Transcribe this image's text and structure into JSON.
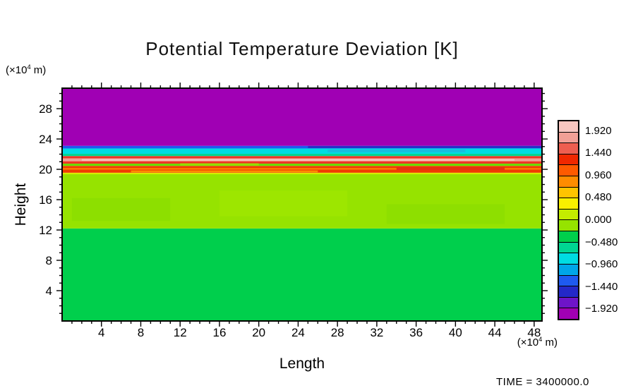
{
  "chart_data": {
    "type": "heatmap",
    "title": "Potential Temperature Deviation [K]",
    "xlabel": "Length",
    "ylabel": "Height",
    "axis_unit": {
      "base": "(×10",
      "exp": "4",
      "rest": " m)"
    },
    "xlim": [
      0,
      48.8
    ],
    "ylim": [
      0,
      30.7
    ],
    "x_major_ticks": [
      4,
      8,
      12,
      16,
      20,
      24,
      28,
      32,
      36,
      40,
      44,
      48
    ],
    "y_major_ticks": [
      4,
      8,
      12,
      16,
      20,
      24,
      28
    ],
    "minor_tick_step": 1,
    "grid": false,
    "time_label": "TIME = 3400000.0",
    "colorbar": {
      "min": -2.16,
      "max": 2.16,
      "step": 0.24,
      "tick_values": [
        1.92,
        1.44,
        0.96,
        0.48,
        0,
        -0.48,
        -0.96,
        -1.44,
        -1.92
      ],
      "tick_labels": [
        "1.920",
        "1.440",
        "0.960",
        "0.480",
        "0.000",
        "−0.480",
        "−0.960",
        "−1.440",
        "−1.920"
      ],
      "colors_top_to_bottom": [
        "#F8C6C0",
        "#F2A096",
        "#EE5E50",
        "#F02800",
        "#FF5A00",
        "#FF8C00",
        "#FFC400",
        "#F8F000",
        "#C4EC00",
        "#96E300",
        "#00CF4C",
        "#00D693",
        "#00DCE2",
        "#00A6E8",
        "#1E5AF0",
        "#2428C8",
        "#6E14C8",
        "#A000B4"
      ]
    },
    "bands": [
      {
        "y0": 0,
        "y1": 12.2,
        "color": "#00CF4C",
        "approx_value": "0.00 to 0.24"
      },
      {
        "y0": 12.2,
        "y1": 19.35,
        "color": "#96E300",
        "approx_value": "0.24 to 0.48"
      },
      {
        "y0": 19.35,
        "y1": 19.55,
        "color": "#D8EE00",
        "approx_value": "0.72 to 0.96"
      },
      {
        "y0": 19.55,
        "y1": 20.45,
        "color": "#F03C00",
        "approx_value": "1.44 to 1.68"
      },
      {
        "y0": 20.45,
        "y1": 20.75,
        "color": "#6ADC00",
        "approx_value": "0.24 to 0.48"
      },
      {
        "y0": 20.75,
        "y1": 21.75,
        "color": "#EE3424",
        "approx_value": "1.44 to 1.92"
      },
      {
        "y0": 21.75,
        "y1": 22.05,
        "color": "#00D693",
        "approx_value": "-0.24 to -0.48"
      },
      {
        "y0": 22.05,
        "y1": 22.75,
        "color": "#00DCE2",
        "approx_value": "-0.48 to -0.96"
      },
      {
        "y0": 22.75,
        "y1": 23.1,
        "color": "#1E5AF0",
        "approx_value": "-1.44 to -1.68"
      },
      {
        "y0": 23.1,
        "y1": 30.7,
        "color": "#A000B4",
        "approx_value": "below -2.16"
      }
    ],
    "patches": [
      {
        "x0": 0,
        "x1": 48.8,
        "y0": 21.05,
        "y1": 21.45,
        "color": "#F2A096",
        "approx_value": "1.68 to 1.92"
      },
      {
        "x0": 2,
        "x1": 46,
        "y0": 21.15,
        "y1": 21.35,
        "color": "#F8C8C2",
        "approx_value": "above 1.92"
      },
      {
        "x0": 0,
        "x1": 48.8,
        "y0": 19.95,
        "y1": 20.18,
        "color": "#FF7A00",
        "approx_value": "1.20 to 1.44"
      },
      {
        "x0": 7,
        "x1": 26,
        "y0": 19.6,
        "y1": 19.85,
        "color": "#FF9C00",
        "opacity": 0.85,
        "approx_value": "0.96 to 1.20"
      },
      {
        "x0": 34,
        "x1": 45,
        "y0": 19.9,
        "y1": 20.3,
        "color": "#E83010",
        "approx_value": "1.44 to 1.68"
      },
      {
        "x0": 25,
        "x1": 48.8,
        "y0": 22.8,
        "y1": 23.08,
        "color": "#2830C8",
        "approx_value": "-1.68 to -1.92"
      },
      {
        "x0": 27,
        "x1": 41,
        "y0": 22.25,
        "y1": 22.6,
        "color": "#20B0E0",
        "opacity": 0.7,
        "approx_value": "-0.96 to -1.20"
      },
      {
        "x0": 1,
        "x1": 11,
        "y0": 13.2,
        "y1": 16.2,
        "color": "#86DC00",
        "opacity": 0.55
      },
      {
        "x0": 16,
        "x1": 29,
        "y0": 13.8,
        "y1": 17.2,
        "color": "#A4EA00",
        "opacity": 0.5
      },
      {
        "x0": 33,
        "x1": 45,
        "y0": 12.8,
        "y1": 15.4,
        "color": "#86DC00",
        "opacity": 0.5
      },
      {
        "x0": 12,
        "x1": 20,
        "y0": 20.5,
        "y1": 20.8,
        "color": "#9CE000",
        "opacity": 0.8
      }
    ]
  }
}
